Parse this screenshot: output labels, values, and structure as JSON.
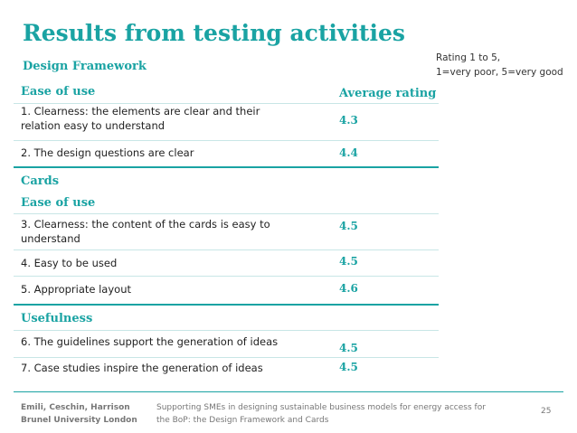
{
  "title": "Results from testing activities",
  "note": {
    "line1": "Rating 1 to 5,",
    "line2": "1=very poor, 5=very good"
  },
  "sections": {
    "design_framework": "Design Framework",
    "ease_of_use_1": "Ease of use",
    "average_rating": "Average rating",
    "cards": "Cards",
    "ease_of_use_2": "Ease of use",
    "usefulness": "Usefulness"
  },
  "rows": [
    {
      "label": "1. Clearness: the elements are clear and their relation easy to understand",
      "value": "4.3"
    },
    {
      "label": "2. The design questions are clear",
      "value": "4.4"
    },
    {
      "label": "3. Clearness: the content of the cards is easy to understand",
      "value": "4.5"
    },
    {
      "label": "4. Easy to be used",
      "value": "4.5"
    },
    {
      "label": "5. Appropriate layout",
      "value": "4.6"
    },
    {
      "label": "6. The guidelines support the generation of ideas",
      "value": "4.5"
    },
    {
      "label": "7. Case studies inspire the generation of ideas",
      "value": "4.5"
    }
  ],
  "footer": {
    "authors_line1": "Emili, Ceschin, Harrison",
    "authors_line2": "Brunel University London",
    "subtitle": "Supporting SMEs in designing sustainable business models for energy access for the BoP: the Design Framework and Cards",
    "page_number": "25"
  },
  "colors": {
    "accent": "#1aa3a3"
  }
}
